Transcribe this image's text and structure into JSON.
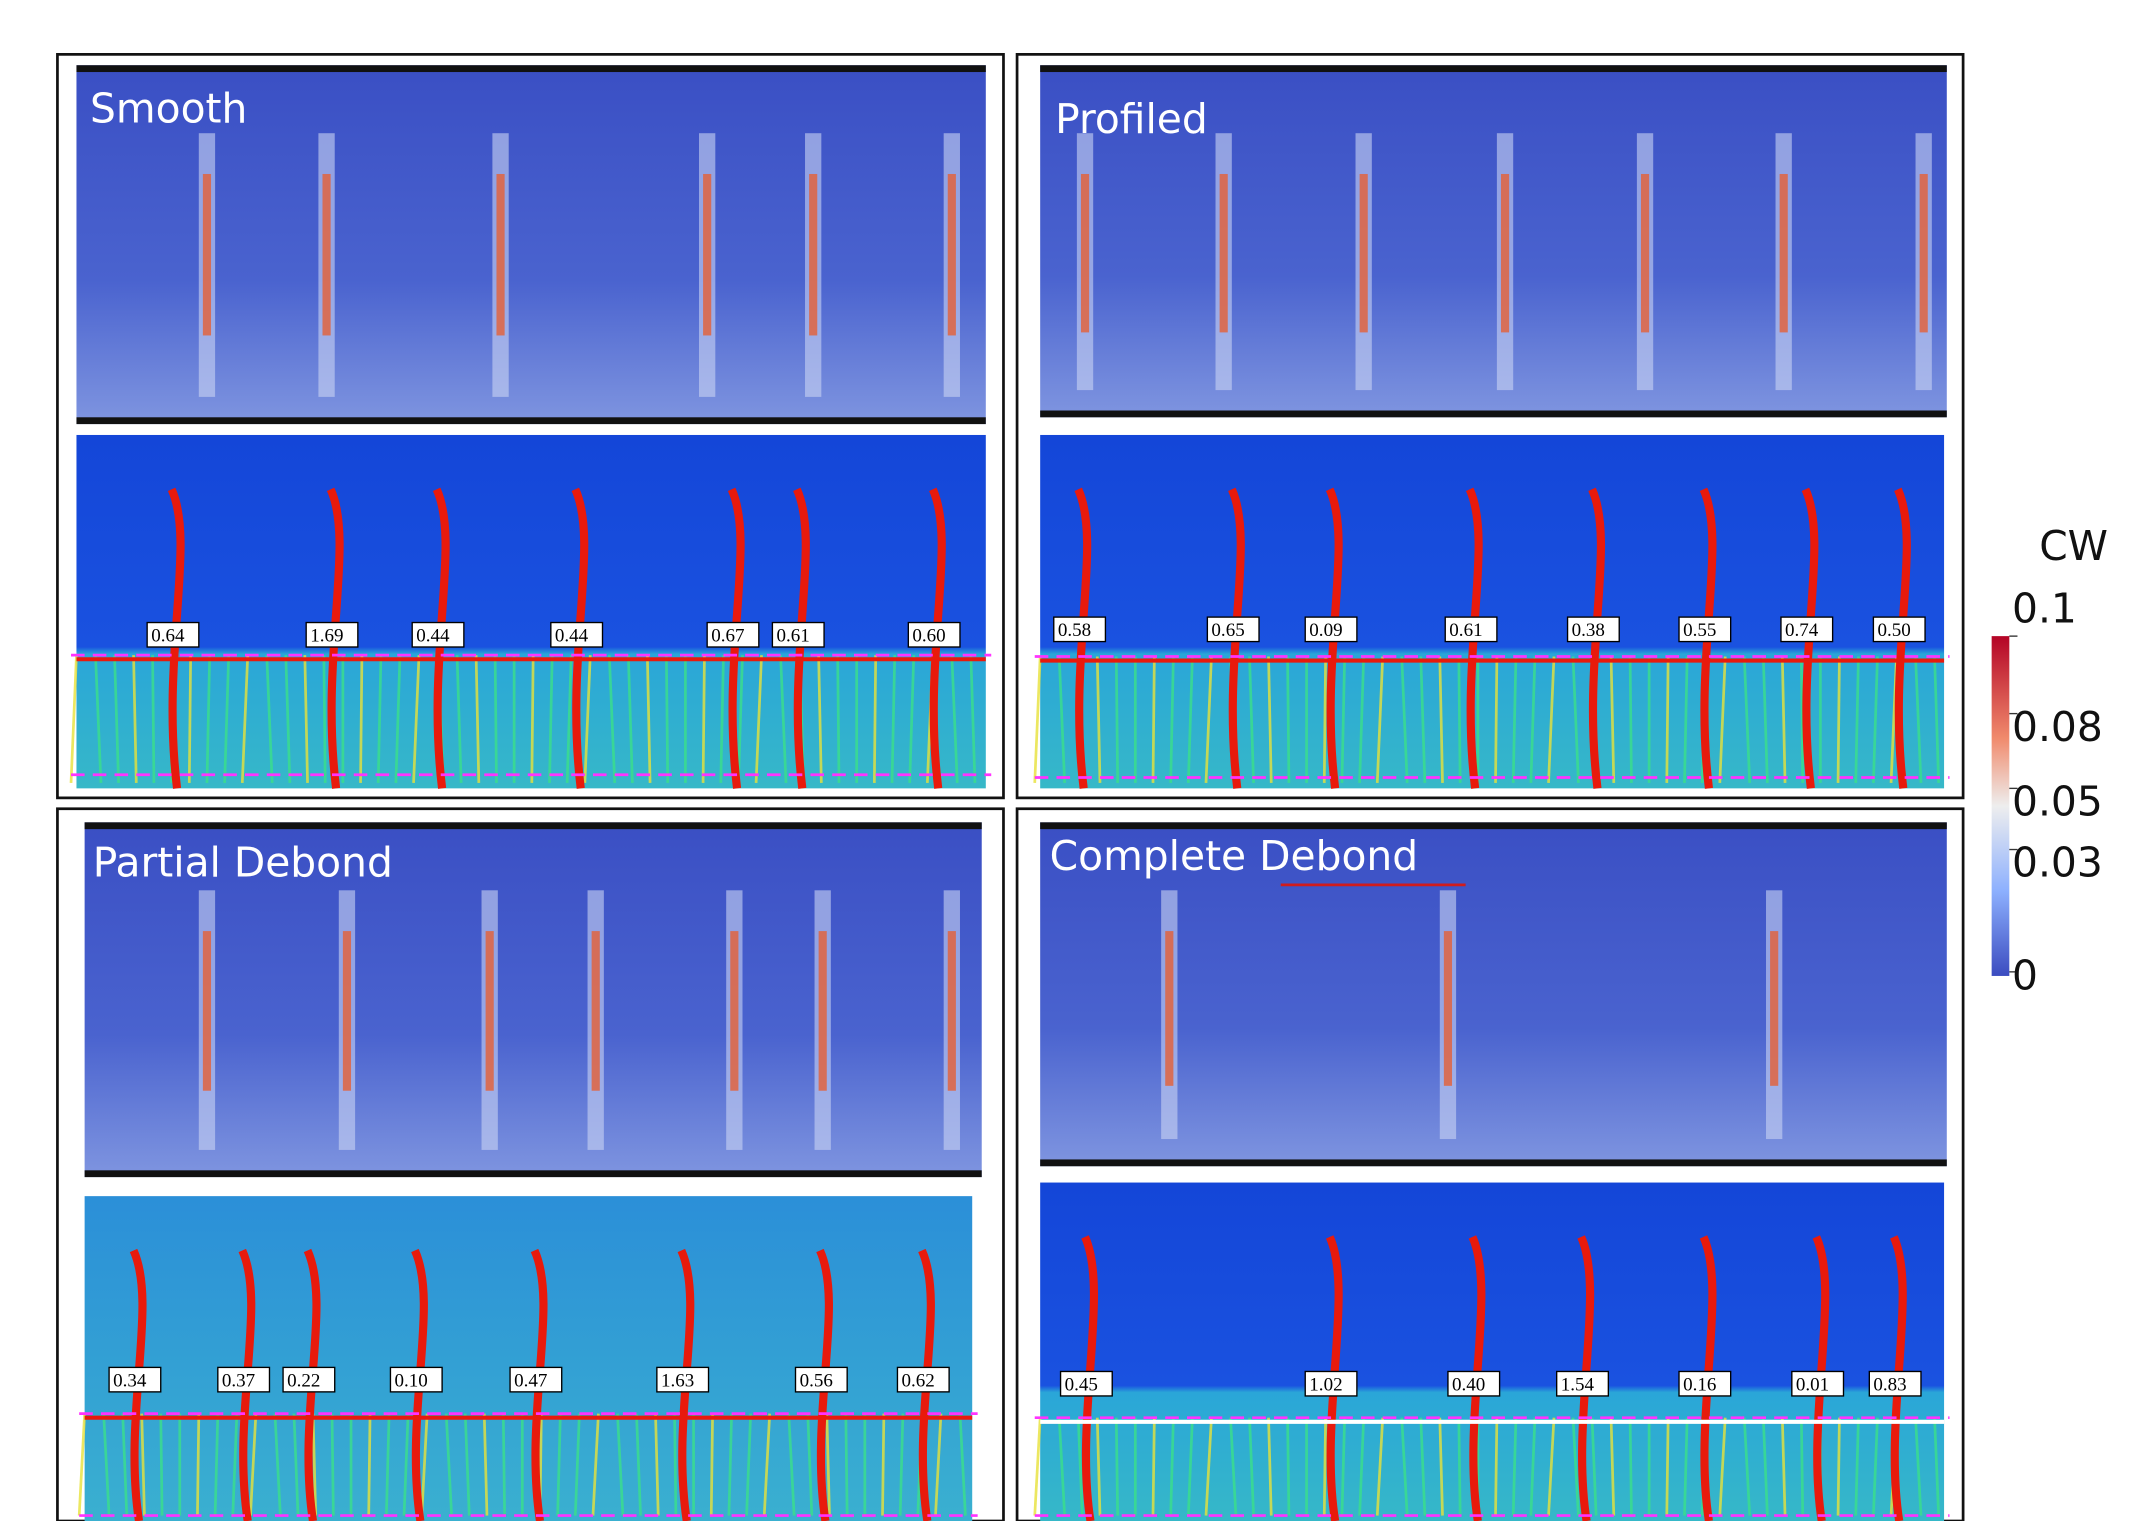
{
  "panels": [
    {
      "title": "Smooth",
      "crack_widths": [
        "0.64",
        "1.69",
        "0.44",
        "0.44",
        "0.67",
        "0.61",
        "0.60"
      ]
    },
    {
      "title": "Profiled",
      "crack_widths": [
        "0.58",
        "0.65",
        "0.09",
        "0.61",
        "0.38",
        "0.55",
        "0.74",
        "0.50"
      ]
    },
    {
      "title": "Partial Debond",
      "crack_widths": [
        "0.34",
        "0.37",
        "0.22",
        "0.10",
        "0.47",
        "1.63",
        "0.56",
        "0.62"
      ]
    },
    {
      "title": "Complete Debond",
      "crack_widths": [
        "0.45",
        "1.02",
        "0.40",
        "1.54",
        "0.16",
        "0.01",
        "0.83"
      ]
    }
  ],
  "colorbar": {
    "title": "CW",
    "ticks": [
      "0.1",
      "0.08",
      "0.05",
      "0.03",
      "0"
    ]
  }
}
